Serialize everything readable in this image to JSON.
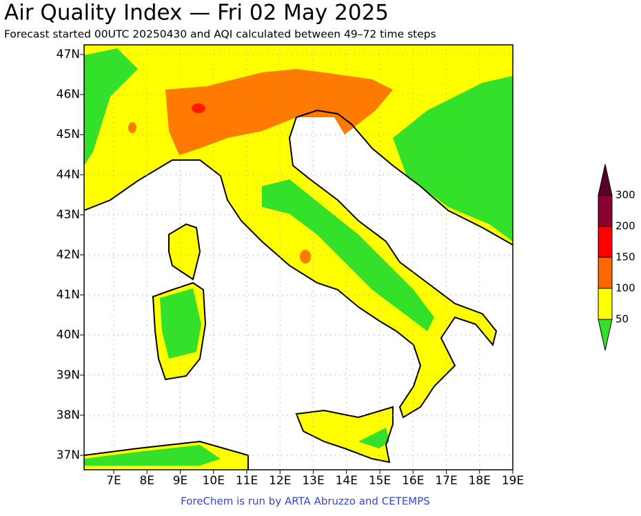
{
  "header": {
    "title": "Air Quality Index — Fri 02 May 2025",
    "subtitle": "Forecast started 00UTC 20250430 and AQI calculated between 49–72 time steps"
  },
  "map": {
    "lat_labels": [
      "47N",
      "46N",
      "45N",
      "44N",
      "43N",
      "42N",
      "41N",
      "40N",
      "39N",
      "38N",
      "37N"
    ],
    "lon_labels": [
      "7E",
      "8E",
      "9E",
      "10E",
      "11E",
      "12E",
      "13E",
      "14E",
      "15E",
      "16E",
      "17E",
      "18E",
      "19E"
    ]
  },
  "legend": {
    "labels": [
      "300",
      "200",
      "150",
      "100",
      "50"
    ]
  },
  "footer": "ForeChem is run by ARTA Abruzzo and CETEMPS"
}
